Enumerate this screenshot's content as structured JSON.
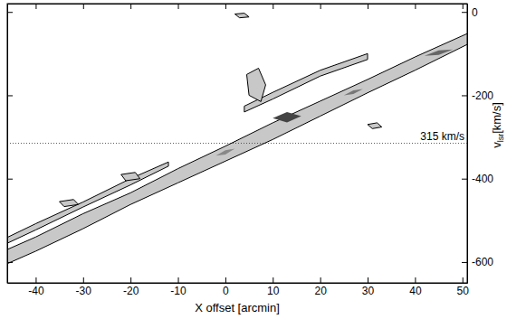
{
  "chart_data": {
    "type": "contour",
    "x_label": "X offset [arcmin]",
    "y_label": {
      "text": "v",
      "sub": "lsr",
      "unit": "[km/s]"
    },
    "xlim": [
      -46,
      51
    ],
    "ylim": [
      -650,
      20
    ],
    "xticks": [
      -40,
      -30,
      -20,
      -10,
      0,
      10,
      20,
      30,
      40,
      50
    ],
    "yticks": [
      0,
      -200,
      -400,
      -600
    ],
    "annotations": [
      {
        "y": -315,
        "text": "315 km/s",
        "line_style": "dotted"
      }
    ],
    "series": [
      {
        "color": "#c8c8c8",
        "line_style": "solid",
        "x": [
          -46,
          -40,
          -30,
          -20,
          -10,
          0,
          10,
          20,
          30,
          40,
          51,
          51,
          40,
          30,
          20,
          10,
          0,
          -10,
          -20,
          -30,
          -40,
          -46
        ],
        "values": [
          -570,
          -540,
          -484,
          -434,
          -376,
          -322,
          -266,
          -214,
          -162,
          -108,
          -52,
          -78,
          -140,
          -194,
          -250,
          -306,
          -358,
          -410,
          -462,
          -520,
          -574,
          -604
        ]
      },
      {
        "color": "#c8c8c8",
        "line_style": "solid",
        "x": [
          -46,
          -40,
          -30,
          -20,
          -12,
          -12,
          -20,
          -30,
          -40,
          -46
        ],
        "values": [
          -541,
          -508,
          -456,
          -400,
          -360,
          -370,
          -415,
          -468,
          -523,
          -555
        ]
      },
      {
        "color": "#c8c8c8",
        "line_style": "solid",
        "x": [
          4,
          10,
          20,
          30,
          30,
          20,
          10,
          4
        ],
        "values": [
          -226,
          -193,
          -140,
          -100,
          -114,
          -154,
          -209,
          -240
        ]
      },
      {
        "color": "#c8c8c8",
        "line_style": "solid",
        "x": [
          4.5,
          7,
          8.5,
          7.5,
          5
        ],
        "values": [
          -150,
          -135,
          -175,
          -215,
          -200
        ]
      },
      {
        "color": "#c8c8c8",
        "line_style": "solid",
        "x": [
          -22,
          -19,
          -18,
          -21
        ],
        "values": [
          -390,
          -385,
          -400,
          -405
        ]
      },
      {
        "color": "#c8c8c8",
        "line_style": "solid",
        "x": [
          -35,
          -32,
          -31,
          -34
        ],
        "values": [
          -455,
          -450,
          -462,
          -467
        ]
      },
      {
        "color": "#c8c8c8",
        "line_style": "solid",
        "x": [
          2,
          4,
          5,
          3
        ],
        "values": [
          -5,
          -3,
          -12,
          -14
        ]
      },
      {
        "color": "#c8c8c8",
        "line_style": "solid",
        "x": [
          30,
          32,
          33,
          31
        ],
        "values": [
          -270,
          -266,
          -276,
          -280
        ]
      },
      {
        "color": "#444444",
        "line_style": "none",
        "x": [
          10,
          13,
          16,
          13
        ],
        "values": [
          -255,
          -240,
          -250,
          -265
        ]
      },
      {
        "color": "#666666",
        "line_style": "none",
        "x": [
          42,
          45,
          48,
          45
        ],
        "values": [
          -105,
          -92,
          -90,
          -103
        ]
      },
      {
        "color": "#777777",
        "line_style": "none",
        "x": [
          25,
          27,
          29,
          27
        ],
        "values": [
          -200,
          -188,
          -185,
          -197
        ]
      },
      {
        "color": "#888888",
        "line_style": "none",
        "x": [
          -2,
          0,
          2,
          0
        ],
        "values": [
          -345,
          -332,
          -328,
          -342
        ]
      }
    ]
  }
}
